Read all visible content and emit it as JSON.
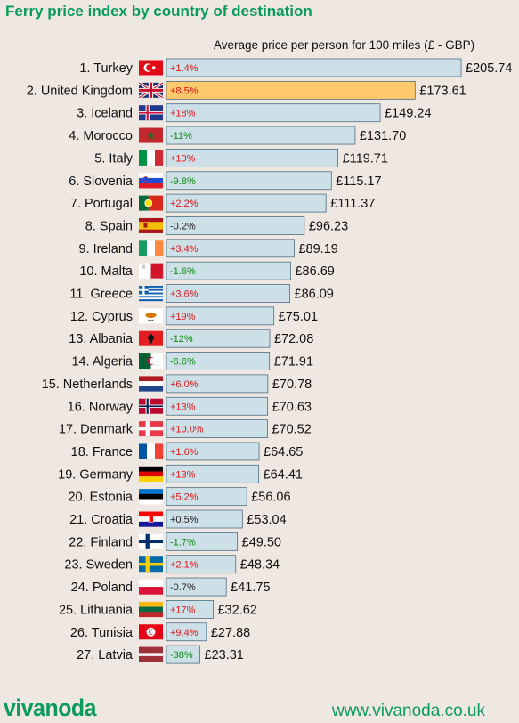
{
  "title": "Ferry price index by country of destination",
  "subtitle": "Average price per person for 100 miles (£ - GBP)",
  "footer": {
    "logo": "vivanoda",
    "url": "www.vivanoda.co.uk"
  },
  "colors": {
    "title": "#0a9b5b",
    "bar": "#cde0e7",
    "bar_highlight": "#fec96b",
    "bar_border": "#4a6e85",
    "change_up": "#e0151d",
    "change_down": "#0d8a14",
    "change_neutral": "#222222"
  },
  "chart_data": {
    "type": "bar",
    "orientation": "horizontal",
    "title": "Ferry price index by country of destination",
    "xlabel": "Average price per person for 100 miles (£ - GBP)",
    "ylabel": "",
    "xlim": [
      0,
      205.74
    ],
    "highlight": "United Kingdom",
    "categories": [
      "1. Turkey",
      "2. United Kingdom",
      "3. Iceland",
      "4. Morocco",
      "5. Italy",
      "6. Slovenia",
      "7. Portugal",
      "8. Spain",
      "9. Ireland",
      "10. Malta",
      "11. Greece",
      "12. Cyprus",
      "13. Albania",
      "14. Algeria",
      "15. Netherlands",
      "16. Norway",
      "17. Denmark",
      "18. France",
      "19. Germany",
      "20. Estonia",
      "21. Croatia",
      "22. Finland",
      "23. Sweden",
      "24. Poland",
      "25. Lithuania",
      "26. Tunisia",
      "27. Latvia"
    ],
    "countries": [
      "Turkey",
      "United Kingdom",
      "Iceland",
      "Morocco",
      "Italy",
      "Slovenia",
      "Portugal",
      "Spain",
      "Ireland",
      "Malta",
      "Greece",
      "Cyprus",
      "Albania",
      "Algeria",
      "Netherlands",
      "Norway",
      "Denmark",
      "France",
      "Germany",
      "Estonia",
      "Croatia",
      "Finland",
      "Sweden",
      "Poland",
      "Lithuania",
      "Tunisia",
      "Latvia"
    ],
    "values": [
      205.74,
      173.61,
      149.24,
      131.7,
      119.71,
      115.17,
      111.37,
      96.23,
      89.19,
      86.69,
      86.09,
      75.01,
      72.08,
      71.91,
      70.78,
      70.63,
      70.52,
      64.65,
      64.41,
      56.06,
      53.04,
      49.5,
      48.34,
      41.75,
      32.62,
      27.88,
      23.31
    ],
    "value_labels": [
      "£205.74",
      "£173.61",
      "£149.24",
      "£131.70",
      "£119.71",
      "£115.17",
      "£111.37",
      "£96.23",
      "£89.19",
      "£86.69",
      "£86.09",
      "£75.01",
      "£72.08",
      "£71.91",
      "£70.78",
      "£70.63",
      "£70.52",
      "£64.65",
      "£64.41",
      "£56.06",
      "£53.04",
      "£49.50",
      "£48.34",
      "£41.75",
      "£32.62",
      "£27.88",
      "£23.31"
    ],
    "changes": [
      "+1.4%",
      "+8.5%",
      "+18%",
      "-11%",
      "+10%",
      "-9.8%",
      "+2.2%",
      "-0.2%",
      "+3.4%",
      "-1.6%",
      "+3.6%",
      "+19%",
      "-12%",
      "-6.6%",
      "+6.0%",
      "+13%",
      "+10.0%",
      "+1.6%",
      "+13%",
      "+5.2%",
      "+0.5%",
      "-1.7%",
      "+2.1%",
      "-0.7%",
      "+17%",
      "+9.4%",
      "-38%"
    ]
  }
}
